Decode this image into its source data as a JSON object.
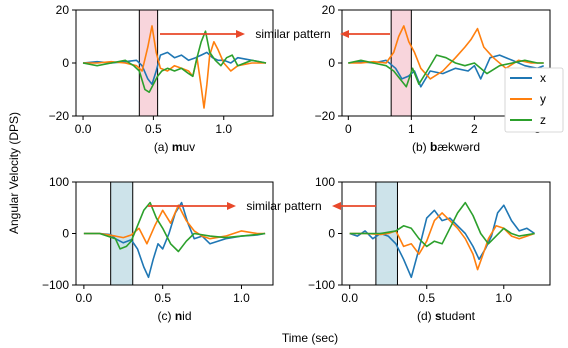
{
  "figure": {
    "ylabel": "Angular Velocity (DPS)",
    "xlabel": "Time (sec)",
    "annotation": "similar pattern",
    "legend": {
      "placement": "right",
      "entries": [
        "x",
        "y",
        "z"
      ]
    }
  },
  "colors": {
    "x": "#1f77b4",
    "y": "#ff7f0e",
    "z": "#2ca02c",
    "highlight_pink": "#f8d5dc",
    "highlight_blue": "#cde3ea",
    "arrow": "#e8482a"
  },
  "chart_data": [
    {
      "type": "line",
      "caption_letter": "(a) ",
      "caption_bold": "m",
      "caption_rest": "uv",
      "xlim": [
        -0.05,
        1.35
      ],
      "ylim": [
        -20,
        20
      ],
      "xticks": [
        0.0,
        0.5,
        1.0
      ],
      "xticklabels": [
        "0.0",
        "0.5",
        "1.0"
      ],
      "yticks": [
        -20,
        0,
        20
      ],
      "yticklabels": [
        "−20",
        "0",
        "20"
      ],
      "highlight": [
        0.4,
        0.53
      ],
      "grid": false,
      "series": [
        {
          "name": "x",
          "x": [
            0,
            0.1,
            0.2,
            0.3,
            0.38,
            0.42,
            0.46,
            0.49,
            0.52,
            0.55,
            0.6,
            0.65,
            0.7,
            0.75,
            0.8,
            0.84,
            0.88,
            0.92,
            0.96,
            1.0,
            1.05,
            1.1,
            1.2,
            1.3
          ],
          "y": [
            0,
            0.5,
            0,
            0.5,
            1,
            -1,
            -6,
            -8,
            -3,
            3,
            4,
            2,
            3,
            1,
            2,
            3,
            4,
            2,
            1,
            1,
            0,
            2,
            1,
            0
          ]
        },
        {
          "name": "y",
          "x": [
            0,
            0.1,
            0.2,
            0.3,
            0.38,
            0.42,
            0.46,
            0.49,
            0.52,
            0.55,
            0.6,
            0.65,
            0.7,
            0.75,
            0.78,
            0.81,
            0.84,
            0.86,
            0.88,
            0.9,
            0.93,
            0.96,
            1.0,
            1.05,
            1.1,
            1.2,
            1.3
          ],
          "y": [
            0,
            0,
            0.5,
            0,
            -1,
            -3,
            6,
            14,
            4,
            -2,
            -3,
            -1,
            -2,
            -3,
            -5,
            2,
            -9,
            -17,
            -8,
            3,
            8,
            5,
            0,
            -3,
            -1,
            0,
            0
          ]
        },
        {
          "name": "z",
          "x": [
            0,
            0.1,
            0.2,
            0.3,
            0.36,
            0.4,
            0.44,
            0.47,
            0.5,
            0.53,
            0.56,
            0.6,
            0.65,
            0.7,
            0.75,
            0.78,
            0.81,
            0.84,
            0.87,
            0.9,
            0.94,
            0.98,
            1.02,
            1.06,
            1.1,
            1.2,
            1.3
          ],
          "y": [
            0,
            -1,
            0,
            1,
            -1,
            -3,
            -10,
            -11,
            -8,
            -5,
            -3,
            -2,
            -3,
            -2,
            -4,
            -5,
            2,
            8,
            12,
            4,
            1,
            -1,
            2,
            3,
            -1,
            1,
            0
          ]
        }
      ]
    },
    {
      "type": "line",
      "caption_letter": "(b) ",
      "caption_bold": "b",
      "caption_rest": "ækwərd",
      "xlim": [
        -0.1,
        3.2
      ],
      "ylim": [
        -20,
        20
      ],
      "xticks": [
        0,
        1,
        2,
        3
      ],
      "xticklabels": [
        "0",
        "1",
        "2",
        "3"
      ],
      "yticks": [
        -20,
        0,
        20
      ],
      "yticklabels": [
        "−20",
        "0",
        "20"
      ],
      "highlight": [
        0.68,
        1.0
      ],
      "grid": false,
      "series": [
        {
          "name": "x",
          "x": [
            0,
            0.2,
            0.4,
            0.6,
            0.75,
            0.85,
            0.95,
            1.05,
            1.15,
            1.3,
            1.5,
            1.7,
            1.9,
            2.0,
            2.1,
            2.25,
            2.4,
            2.6,
            2.8,
            3.0,
            3.1
          ],
          "y": [
            0,
            0.5,
            0,
            1,
            -2,
            -6,
            -5,
            -3,
            -9,
            -3,
            -4,
            -2,
            -3,
            -1,
            -6,
            2,
            3,
            1,
            -1,
            -2,
            -1
          ]
        },
        {
          "name": "y",
          "x": [
            0,
            0.2,
            0.4,
            0.6,
            0.72,
            0.8,
            0.88,
            0.96,
            1.05,
            1.15,
            1.3,
            1.5,
            1.7,
            1.85,
            1.95,
            2.05,
            2.15,
            2.3,
            2.5,
            2.7,
            2.9,
            3.1
          ],
          "y": [
            0,
            0,
            0.5,
            0,
            4,
            10,
            14,
            8,
            4,
            -2,
            -6,
            -3,
            2,
            6,
            9,
            13,
            6,
            2,
            -2,
            1,
            0,
            0
          ]
        },
        {
          "name": "z",
          "x": [
            0,
            0.2,
            0.4,
            0.6,
            0.72,
            0.82,
            0.92,
            1.02,
            1.12,
            1.25,
            1.4,
            1.55,
            1.7,
            1.85,
            2.0,
            2.2,
            2.4,
            2.6,
            2.8,
            3.0,
            3.1
          ],
          "y": [
            0,
            1,
            0,
            -1,
            -3,
            -6,
            -9,
            -2,
            -8,
            -3,
            3,
            2,
            0,
            -1,
            0,
            -4,
            -1,
            0,
            1,
            0,
            0
          ]
        }
      ]
    },
    {
      "type": "line",
      "caption_letter": "(c) ",
      "caption_bold": "n",
      "caption_rest": "id",
      "xlim": [
        -0.05,
        1.2
      ],
      "ylim": [
        -100,
        100
      ],
      "xticks": [
        0.0,
        0.5,
        1.0
      ],
      "xticklabels": [
        "0.0",
        "0.5",
        "1.0"
      ],
      "yticks": [
        -100,
        0,
        100
      ],
      "yticklabels": [
        "−100",
        "0",
        "100"
      ],
      "highlight": [
        0.17,
        0.31
      ],
      "grid": false,
      "series": [
        {
          "name": "x",
          "x": [
            0,
            0.1,
            0.17,
            0.2,
            0.25,
            0.3,
            0.34,
            0.38,
            0.41,
            0.44,
            0.47,
            0.5,
            0.54,
            0.58,
            0.62,
            0.66,
            0.7,
            0.75,
            0.8,
            0.85,
            0.9,
            1.0,
            1.1,
            1.15
          ],
          "y": [
            0,
            0,
            -2,
            -10,
            -18,
            -12,
            -30,
            -65,
            -85,
            -50,
            -20,
            -30,
            0,
            40,
            60,
            20,
            -10,
            -5,
            -20,
            -15,
            -10,
            -5,
            -3,
            0
          ]
        },
        {
          "name": "y",
          "x": [
            0,
            0.1,
            0.2,
            0.25,
            0.3,
            0.35,
            0.4,
            0.45,
            0.5,
            0.55,
            0.6,
            0.65,
            0.7,
            0.75,
            0.8,
            0.9,
            1.0,
            1.1,
            1.15
          ],
          "y": [
            0,
            0,
            -5,
            -8,
            -3,
            10,
            -20,
            15,
            45,
            20,
            55,
            25,
            5,
            -5,
            -10,
            -5,
            5,
            0,
            0
          ]
        },
        {
          "name": "z",
          "x": [
            0,
            0.1,
            0.2,
            0.23,
            0.27,
            0.3,
            0.34,
            0.38,
            0.42,
            0.46,
            0.5,
            0.55,
            0.6,
            0.65,
            0.7,
            0.8,
            0.9,
            1.0,
            1.1,
            1.15
          ],
          "y": [
            0,
            0,
            -10,
            -30,
            -25,
            -15,
            15,
            45,
            60,
            30,
            10,
            -20,
            -35,
            -15,
            0,
            -5,
            -8,
            -5,
            -2,
            0
          ]
        }
      ]
    },
    {
      "type": "line",
      "caption_letter": "(d) ",
      "caption_bold": "s",
      "caption_rest": "tudənt",
      "xlim": [
        -0.05,
        1.3
      ],
      "ylim": [
        -100,
        100
      ],
      "xticks": [
        0.0,
        0.5,
        1.0
      ],
      "xticklabels": [
        "0.0",
        "0.5",
        "1.0"
      ],
      "yticks": [
        -100,
        0,
        100
      ],
      "yticklabels": [
        "−100",
        "0",
        "100"
      ],
      "highlight": [
        0.17,
        0.31
      ],
      "grid": false,
      "series": [
        {
          "name": "x",
          "x": [
            0,
            0.05,
            0.1,
            0.15,
            0.2,
            0.25,
            0.3,
            0.35,
            0.4,
            0.45,
            0.5,
            0.55,
            0.6,
            0.65,
            0.7,
            0.75,
            0.8,
            0.84,
            0.88,
            0.92,
            0.96,
            1.0,
            1.05,
            1.1,
            1.15,
            1.2
          ],
          "y": [
            0,
            -5,
            5,
            -10,
            0,
            -5,
            -20,
            -50,
            -85,
            -30,
            30,
            45,
            25,
            30,
            15,
            0,
            -25,
            -50,
            -30,
            -5,
            40,
            55,
            25,
            5,
            10,
            0
          ]
        },
        {
          "name": "y",
          "x": [
            0,
            0.1,
            0.2,
            0.25,
            0.3,
            0.35,
            0.4,
            0.45,
            0.5,
            0.55,
            0.6,
            0.7,
            0.75,
            0.8,
            0.83,
            0.86,
            0.9,
            0.95,
            1.0,
            1.05,
            1.1,
            1.2
          ],
          "y": [
            0,
            0,
            -2,
            0,
            5,
            -25,
            -20,
            -40,
            -15,
            25,
            40,
            10,
            -10,
            -40,
            -70,
            -45,
            -10,
            15,
            10,
            -5,
            -10,
            0
          ]
        },
        {
          "name": "z",
          "x": [
            0,
            0.1,
            0.2,
            0.3,
            0.35,
            0.4,
            0.45,
            0.5,
            0.55,
            0.6,
            0.65,
            0.7,
            0.75,
            0.8,
            0.85,
            0.9,
            0.95,
            1.0,
            1.05,
            1.1,
            1.2
          ],
          "y": [
            0,
            0,
            0,
            5,
            15,
            10,
            -10,
            -25,
            -15,
            -20,
            10,
            40,
            60,
            35,
            0,
            -20,
            -5,
            10,
            0,
            -5,
            0
          ]
        }
      ]
    }
  ]
}
